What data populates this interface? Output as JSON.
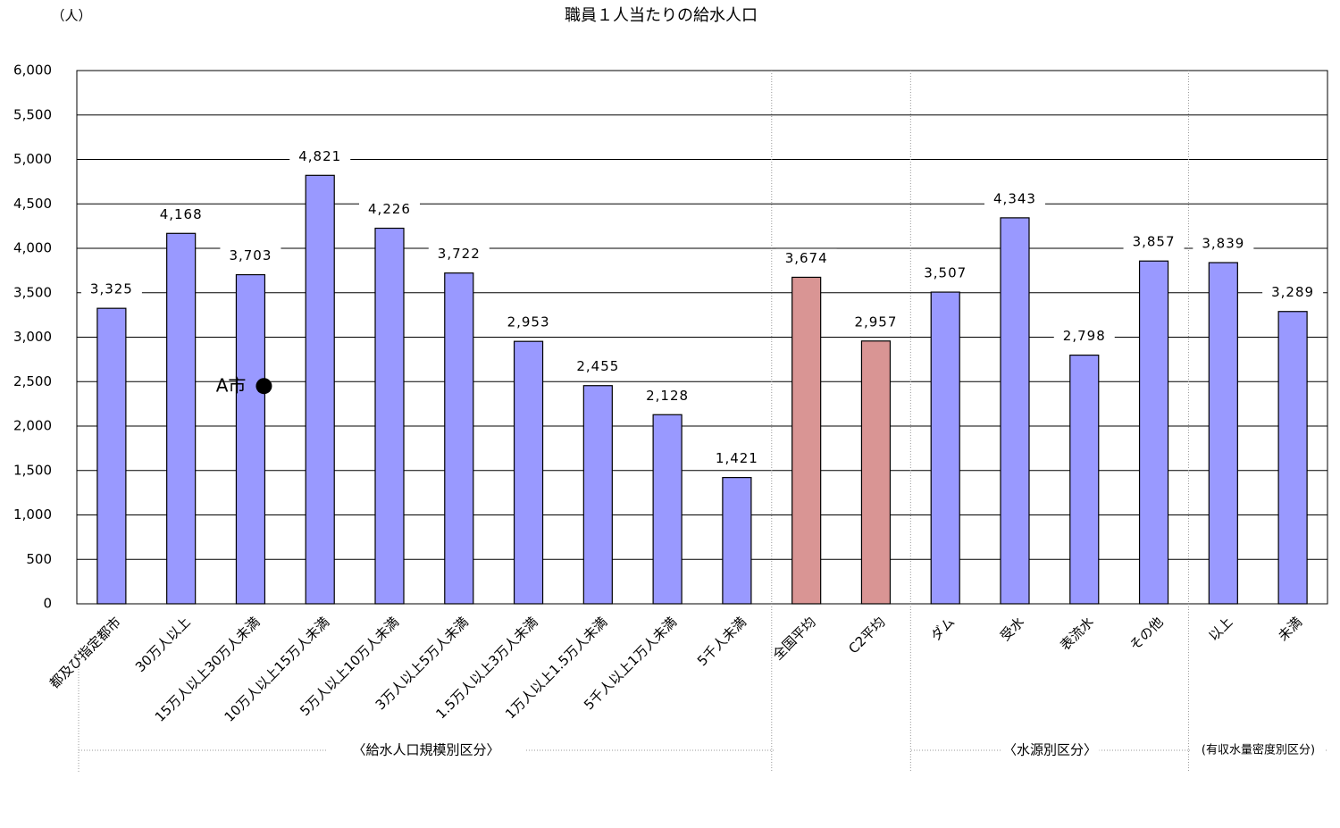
{
  "chart_data": {
    "type": "bar",
    "title": "職員１人当たりの給水人口",
    "y_unit_label": "（人）",
    "categories": [
      "都及び指定都市",
      "30万人以上",
      "15万人以上30万人未満",
      "10万人以上15万人未満",
      "5万人以上10万人未満",
      "3万人以上5万人未満",
      "1.5万人以上3万人未満",
      "1万人以上1.5万人未満",
      "5千人以上1万人未満",
      "5千人未満",
      "全国平均",
      "C2平均",
      "ダム",
      "受水",
      "表流水",
      "その他",
      "以上",
      "未満"
    ],
    "values": [
      3325,
      4168,
      3703,
      4821,
      4226,
      3722,
      2953,
      2455,
      2128,
      1421,
      3674,
      2957,
      3507,
      4343,
      2798,
      3857,
      3839,
      3289
    ],
    "value_labels": [
      "3,325",
      "4,168",
      "3,703",
      "4,821",
      "4,226",
      "3,722",
      "2,953",
      "2,455",
      "2,128",
      "1,421",
      "3,674",
      "2,957",
      "3,507",
      "4,343",
      "2,798",
      "3,857",
      "3,839",
      "3,289"
    ],
    "colors": [
      "#9999ff",
      "#9999ff",
      "#9999ff",
      "#9999ff",
      "#9999ff",
      "#9999ff",
      "#9999ff",
      "#9999ff",
      "#9999ff",
      "#9999ff",
      "#d99594",
      "#d99594",
      "#9999ff",
      "#9999ff",
      "#9999ff",
      "#9999ff",
      "#9999ff",
      "#9999ff"
    ],
    "ylim": [
      0,
      6000
    ],
    "yticks": [
      0,
      500,
      {
        "value": 1000,
        "label": "1,000"
      },
      {
        "value": 1500,
        "label": "1,500"
      },
      {
        "value": 2000,
        "label": "2,000"
      },
      {
        "value": 2500,
        "label": "2,500"
      },
      {
        "value": 3000,
        "label": "3,000"
      },
      {
        "value": 3500,
        "label": "3,500"
      },
      {
        "value": 4000,
        "label": "4,000"
      },
      {
        "value": 4500,
        "label": "4,500"
      },
      {
        "value": 5000,
        "label": "5,000"
      },
      {
        "value": 5500,
        "label": "5,500"
      },
      {
        "value": 6000,
        "label": "6,000"
      }
    ],
    "grid": true,
    "annotations": [
      {
        "text": "A市",
        "category": "15万人以上30万人未満",
        "value": 2450
      }
    ],
    "group_labels": [
      "〈給水人口規模別区分〉",
      "〈水源別区分〉",
      "(有収水量密度別区分)"
    ]
  }
}
